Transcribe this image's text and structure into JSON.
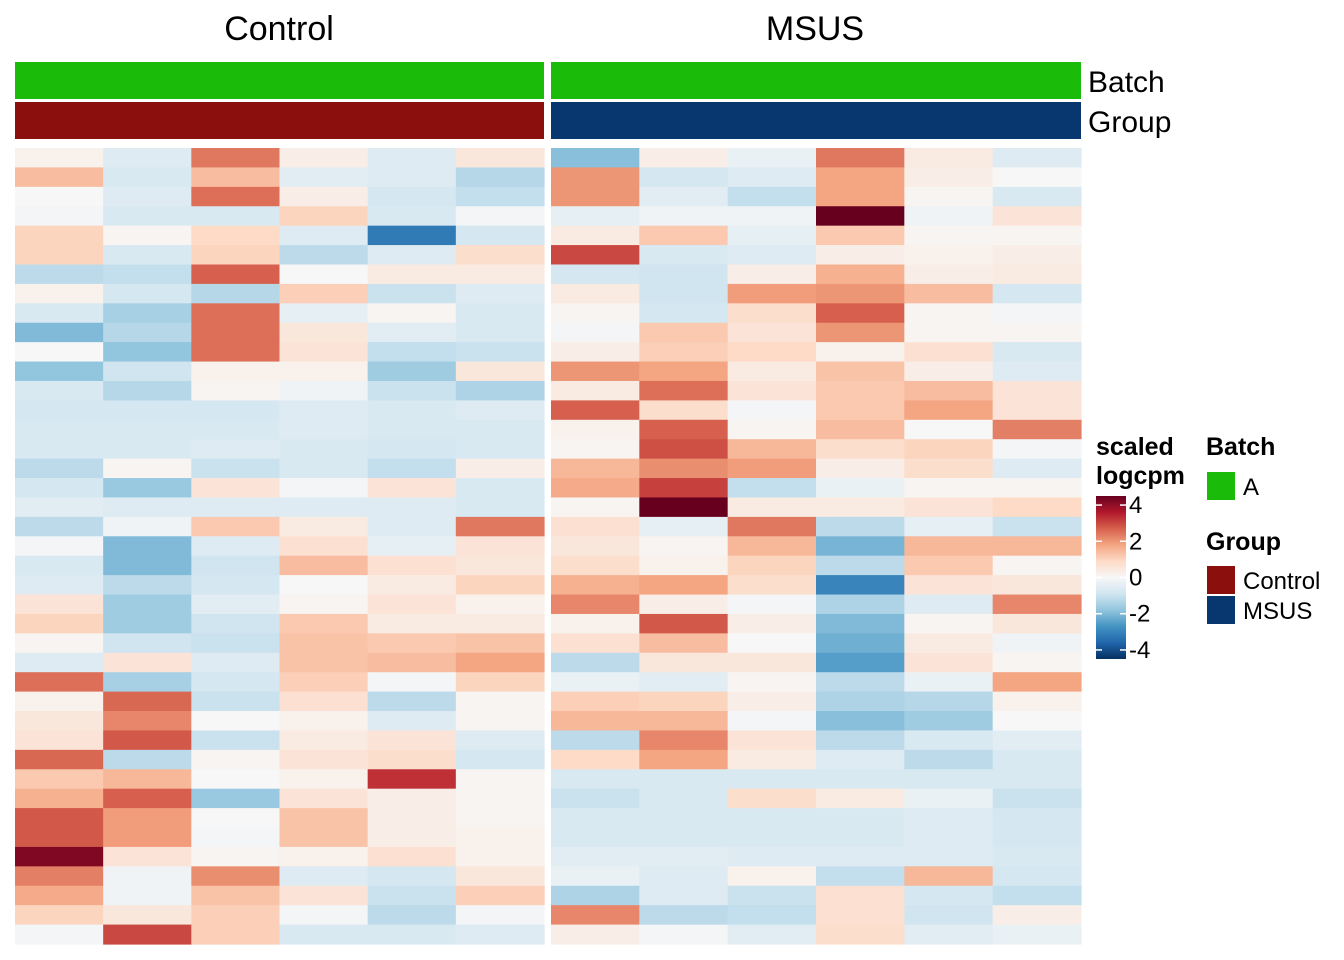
{
  "chart_data": {
    "type": "heatmap",
    "panels": [
      "Control",
      "MSUS"
    ],
    "columns_per_panel": 6,
    "annotation_tracks": [
      {
        "name": "Batch",
        "values": [
          "A",
          "A"
        ]
      },
      {
        "name": "Group",
        "values": [
          "Control",
          "MSUS"
        ]
      }
    ],
    "colorbar": {
      "title": [
        "scaled",
        "logcpm"
      ],
      "ticks": [
        4,
        2,
        0,
        -2,
        -4
      ],
      "tick_labels": [
        "4",
        "2",
        "0",
        "-2",
        "-4"
      ],
      "range": [
        -4.5,
        4.5
      ],
      "colors": [
        "#053061",
        "#2166AC",
        "#4393C3",
        "#92C5DE",
        "#D1E5F0",
        "#F7F7F7",
        "#FDDBC7",
        "#F4A582",
        "#D6604D",
        "#B2182B",
        "#67001F"
      ]
    },
    "legends": [
      {
        "title": "Batch",
        "items": [
          {
            "label": "A",
            "color": "#1BBB0A"
          }
        ]
      },
      {
        "title": "Group",
        "items": [
          {
            "label": "Control",
            "color": "#8B100D"
          },
          {
            "label": "MSUS",
            "color": "#08366F"
          }
        ]
      }
    ],
    "values": {
      "Control": [
        [
          0.2,
          -0.6,
          2.4,
          0.3,
          -0.6,
          0.5
        ],
        [
          1.4,
          -0.7,
          1.4,
          -0.5,
          -0.6,
          -1.3
        ],
        [
          0.0,
          -0.6,
          2.5,
          0.3,
          -0.8,
          -1.1
        ],
        [
          -0.1,
          -0.7,
          -0.7,
          1.0,
          -0.7,
          -0.1
        ],
        [
          1.0,
          0.1,
          0.9,
          -0.6,
          -3.2,
          -0.8
        ],
        [
          1.0,
          -0.7,
          1.0,
          -1.2,
          -0.6,
          0.8
        ],
        [
          -1.2,
          -1.1,
          2.7,
          0.0,
          0.4,
          0.4
        ],
        [
          0.2,
          -0.8,
          -1.3,
          1.1,
          -1.0,
          -0.6
        ],
        [
          -0.7,
          -1.5,
          2.5,
          -0.4,
          0.1,
          -0.7
        ],
        [
          -2.0,
          -1.3,
          2.5,
          0.5,
          -0.5,
          -0.7
        ],
        [
          0.0,
          -1.8,
          2.5,
          0.6,
          -1.1,
          -1.0
        ],
        [
          -1.8,
          -0.9,
          0.2,
          0.2,
          -1.6,
          0.5
        ],
        [
          -0.7,
          -1.3,
          0.1,
          -0.2,
          -1.0,
          -1.4
        ],
        [
          -0.8,
          -0.8,
          -0.8,
          -0.6,
          -0.7,
          -0.6
        ],
        [
          -0.7,
          -0.7,
          -0.7,
          -0.6,
          -0.7,
          -0.7
        ],
        [
          -0.7,
          -0.7,
          -0.6,
          -0.7,
          -0.8,
          -0.7
        ],
        [
          -1.2,
          0.1,
          -1.0,
          -0.7,
          -1.1,
          0.3
        ],
        [
          -0.8,
          -1.7,
          0.6,
          -0.1,
          0.6,
          -0.7
        ],
        [
          -0.5,
          -0.6,
          -0.6,
          -0.6,
          -0.6,
          -0.7
        ],
        [
          -1.2,
          -0.2,
          1.2,
          0.4,
          -0.6,
          2.4
        ],
        [
          -0.1,
          -2.0,
          -0.6,
          0.7,
          -0.4,
          0.6
        ],
        [
          -0.7,
          -2.0,
          -0.9,
          1.4,
          0.7,
          0.5
        ],
        [
          -0.6,
          -1.2,
          -0.8,
          0.0,
          0.4,
          1.0
        ],
        [
          0.6,
          -1.6,
          -0.5,
          0.1,
          0.6,
          0.2
        ],
        [
          1.0,
          -1.6,
          -0.9,
          1.2,
          0.4,
          0.4
        ],
        [
          0.1,
          -0.9,
          -1.0,
          1.3,
          1.2,
          1.3
        ],
        [
          -0.6,
          0.6,
          -0.6,
          1.3,
          1.4,
          1.8
        ],
        [
          2.5,
          -1.5,
          -0.8,
          1.1,
          -0.1,
          1.0
        ],
        [
          0.2,
          2.6,
          -1.0,
          0.7,
          -1.2,
          0.1
        ],
        [
          0.5,
          2.2,
          0.0,
          0.2,
          -0.6,
          0.1
        ],
        [
          0.6,
          2.8,
          -1.0,
          0.4,
          0.6,
          -0.6
        ],
        [
          2.6,
          -1.2,
          0.1,
          0.6,
          0.8,
          -0.8
        ],
        [
          1.2,
          1.5,
          0.0,
          0.2,
          3.3,
          0.1
        ],
        [
          1.6,
          2.7,
          -1.7,
          0.6,
          0.3,
          0.1
        ],
        [
          2.8,
          1.9,
          0.0,
          1.3,
          0.3,
          0.1
        ],
        [
          2.8,
          1.9,
          -0.1,
          1.3,
          0.3,
          0.2
        ],
        [
          4.2,
          0.6,
          0.1,
          0.2,
          0.7,
          0.2
        ],
        [
          2.3,
          -0.2,
          2.1,
          -0.6,
          -0.8,
          0.5
        ],
        [
          1.7,
          -0.2,
          1.3,
          0.6,
          -1.0,
          1.1
        ],
        [
          1.0,
          0.5,
          1.1,
          -0.1,
          -1.2,
          -0.1
        ],
        [
          -0.1,
          3.0,
          1.1,
          -0.7,
          -0.7,
          -0.6
        ]
      ],
      "MSUS": [
        [
          -1.9,
          0.3,
          -0.3,
          2.4,
          0.4,
          -0.6
        ],
        [
          2.0,
          -0.8,
          -0.6,
          1.8,
          0.3,
          0.0
        ],
        [
          2.0,
          -0.5,
          -1.1,
          1.8,
          0.1,
          -0.7
        ],
        [
          -0.4,
          -0.2,
          -0.2,
          4.5,
          -0.2,
          0.6
        ],
        [
          0.4,
          1.2,
          -0.4,
          1.2,
          0.1,
          0.1
        ],
        [
          3.0,
          -0.7,
          -0.6,
          0.3,
          0.2,
          0.3
        ],
        [
          -0.8,
          -0.9,
          0.3,
          1.6,
          0.3,
          0.4
        ],
        [
          0.4,
          -0.9,
          1.9,
          2.0,
          1.4,
          -0.8
        ],
        [
          0.1,
          -0.8,
          0.8,
          2.7,
          0.1,
          -0.1
        ],
        [
          -0.1,
          1.2,
          0.6,
          2.0,
          0.1,
          0.1
        ],
        [
          0.3,
          1.1,
          0.9,
          0.2,
          0.7,
          -0.7
        ],
        [
          2.0,
          1.8,
          0.4,
          1.3,
          0.3,
          -0.6
        ],
        [
          0.4,
          2.5,
          0.6,
          1.2,
          1.4,
          0.6
        ],
        [
          2.7,
          0.8,
          -0.1,
          1.2,
          1.8,
          0.6
        ],
        [
          0.2,
          2.7,
          0.1,
          1.4,
          0.0,
          2.3
        ],
        [
          0.1,
          2.9,
          1.5,
          0.8,
          1.0,
          -0.1
        ],
        [
          1.5,
          2.1,
          1.9,
          0.3,
          0.8,
          -0.6
        ],
        [
          1.7,
          3.1,
          -1.1,
          -0.3,
          0.1,
          0.1
        ],
        [
          0.1,
          4.5,
          0.4,
          0.4,
          0.6,
          0.9
        ],
        [
          0.7,
          -0.4,
          2.4,
          -1.2,
          -0.4,
          -1.0
        ],
        [
          0.5,
          0.1,
          1.5,
          -2.1,
          1.5,
          1.5
        ],
        [
          0.8,
          0.2,
          1.0,
          -1.2,
          1.2,
          0.1
        ],
        [
          1.6,
          1.8,
          0.8,
          -3.0,
          0.6,
          0.5
        ],
        [
          2.2,
          0.3,
          -0.1,
          -1.4,
          -0.6,
          2.2
        ],
        [
          0.2,
          2.8,
          0.3,
          -2.0,
          0.1,
          0.5
        ],
        [
          0.7,
          1.4,
          0.0,
          -2.2,
          0.4,
          -0.2
        ],
        [
          -1.2,
          0.5,
          0.5,
          -2.5,
          0.6,
          0.1
        ],
        [
          -0.3,
          -0.5,
          0.1,
          -1.2,
          -0.3,
          1.8
        ],
        [
          1.1,
          1.0,
          0.3,
          -1.4,
          -1.3,
          0.2
        ],
        [
          1.5,
          1.5,
          -0.1,
          -1.9,
          -1.6,
          0.0
        ],
        [
          -1.2,
          2.2,
          0.6,
          -1.2,
          -0.7,
          -0.5
        ],
        [
          0.9,
          1.8,
          0.4,
          -0.6,
          -1.2,
          -0.7
        ],
        [
          -0.7,
          -0.7,
          -0.7,
          -0.7,
          -0.7,
          -0.7
        ],
        [
          -1.0,
          -0.7,
          0.8,
          0.4,
          -0.3,
          -1.0
        ],
        [
          -0.7,
          -0.7,
          -0.7,
          -0.7,
          -0.6,
          -0.8
        ],
        [
          -0.7,
          -0.7,
          -0.7,
          -0.7,
          -0.6,
          -0.8
        ],
        [
          -0.5,
          -0.5,
          -0.6,
          -0.6,
          -0.6,
          -0.7
        ],
        [
          -0.3,
          -0.6,
          0.2,
          -1.1,
          1.5,
          -0.8
        ],
        [
          -1.4,
          -0.6,
          -1.0,
          0.7,
          -0.8,
          -1.1
        ],
        [
          2.2,
          -1.2,
          -1.1,
          0.7,
          -0.9,
          0.3
        ],
        [
          0.3,
          -0.1,
          -0.5,
          0.8,
          -0.5,
          -0.3
        ]
      ]
    }
  }
}
